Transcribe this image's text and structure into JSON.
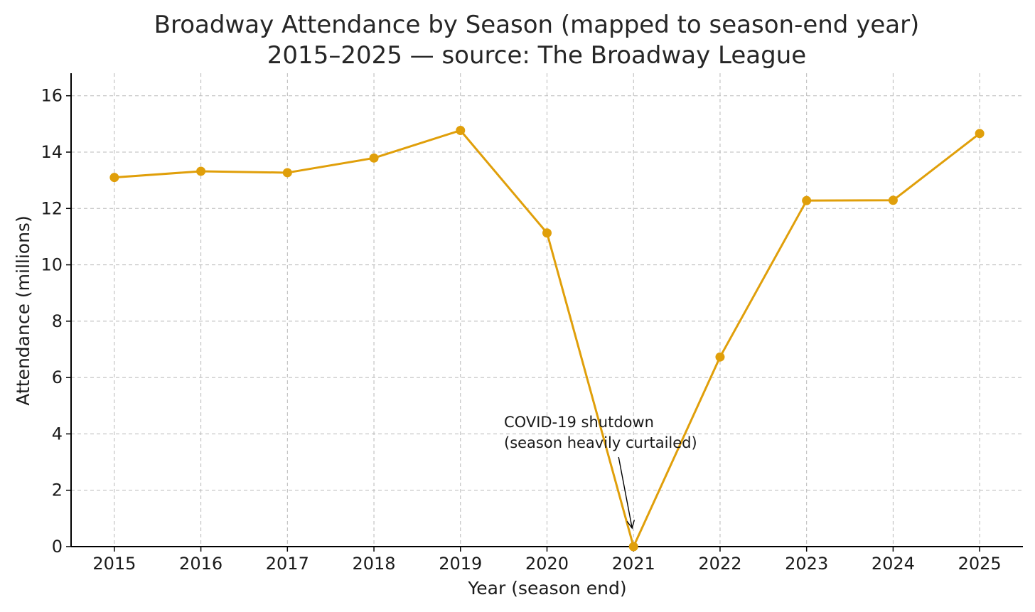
{
  "chart_data": {
    "type": "line",
    "title": [
      "Broadway Attendance by Season (mapped to season-end year)",
      "2015–2025 — source: The Broadway League"
    ],
    "xlabel": "Year (season end)",
    "ylabel": "Attendance (millions)",
    "x": [
      2015,
      2016,
      2017,
      2018,
      2019,
      2020,
      2021,
      2022,
      2023,
      2024,
      2025
    ],
    "x_tick_labels": [
      "2015",
      "2016",
      "2017",
      "2018",
      "2019",
      "2020",
      "2021",
      "2022",
      "2023",
      "2024",
      "2025"
    ],
    "y_ticks": [
      0,
      2,
      4,
      6,
      8,
      10,
      12,
      14,
      16
    ],
    "y_tick_labels": [
      "0",
      "2",
      "4",
      "6",
      "8",
      "10",
      "12",
      "14",
      "16"
    ],
    "xlim": [
      2014.5,
      2025.5
    ],
    "ylim": [
      0,
      16.8
    ],
    "grid": true,
    "series": [
      {
        "color": "#E09F0A",
        "values": [
          13.1,
          13.32,
          13.27,
          13.79,
          14.77,
          11.13,
          0.0,
          6.73,
          12.28,
          12.29,
          14.66
        ]
      }
    ],
    "annotation": {
      "text": [
        "COVID-19 shutdown",
        "(season heavily curtailed)"
      ],
      "target_x": 2021,
      "target_y": 0.0
    }
  }
}
